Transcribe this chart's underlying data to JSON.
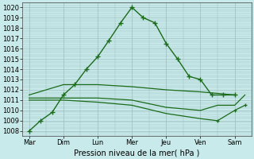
{
  "background_color": "#c8eaea",
  "line_color": "#1a6b1a",
  "xlabel": "Pression niveau de la mer( hPa )",
  "ylim": [
    1007.5,
    1020.5
  ],
  "yticks": [
    1008,
    1009,
    1010,
    1011,
    1012,
    1013,
    1014,
    1015,
    1016,
    1017,
    1018,
    1019,
    1020
  ],
  "days": [
    "Mar",
    "Dim",
    "Lun",
    "Mer",
    "Jeu",
    "Ven",
    "Sam"
  ],
  "xtick_pos": [
    0,
    1,
    2,
    3,
    4,
    5,
    6
  ],
  "line1_x": [
    0,
    0.33,
    0.67,
    1.0,
    1.33,
    1.67,
    2.0,
    2.33,
    2.67,
    3.0,
    3.33,
    3.67,
    4.0,
    4.33,
    4.67,
    5.0,
    5.33,
    5.67,
    6.0
  ],
  "line1_y": [
    1008.0,
    1009.0,
    1009.8,
    1011.5,
    1012.5,
    1014.0,
    1015.2,
    1016.8,
    1018.5,
    1020.0,
    1019.0,
    1018.5,
    1016.5,
    1015.0,
    1013.3,
    1013.0,
    1011.5,
    1011.5,
    1011.5
  ],
  "line2_x": [
    0,
    1,
    2,
    3,
    4,
    5,
    6
  ],
  "line2_y": [
    1011.5,
    1012.5,
    1012.5,
    1012.3,
    1012.0,
    1011.8,
    1011.5
  ],
  "line3_x": [
    0,
    1,
    2,
    3,
    4,
    5,
    5.5,
    6,
    6.3
  ],
  "line3_y": [
    1011.2,
    1011.2,
    1011.2,
    1011.0,
    1010.3,
    1010.0,
    1010.5,
    1010.5,
    1011.5
  ],
  "line4_x": [
    0,
    1,
    2,
    3,
    4,
    5,
    5.5,
    6,
    6.3
  ],
  "line4_y": [
    1011.0,
    1011.0,
    1010.8,
    1010.5,
    1009.7,
    1009.2,
    1009.0,
    1010.0,
    1010.5
  ]
}
